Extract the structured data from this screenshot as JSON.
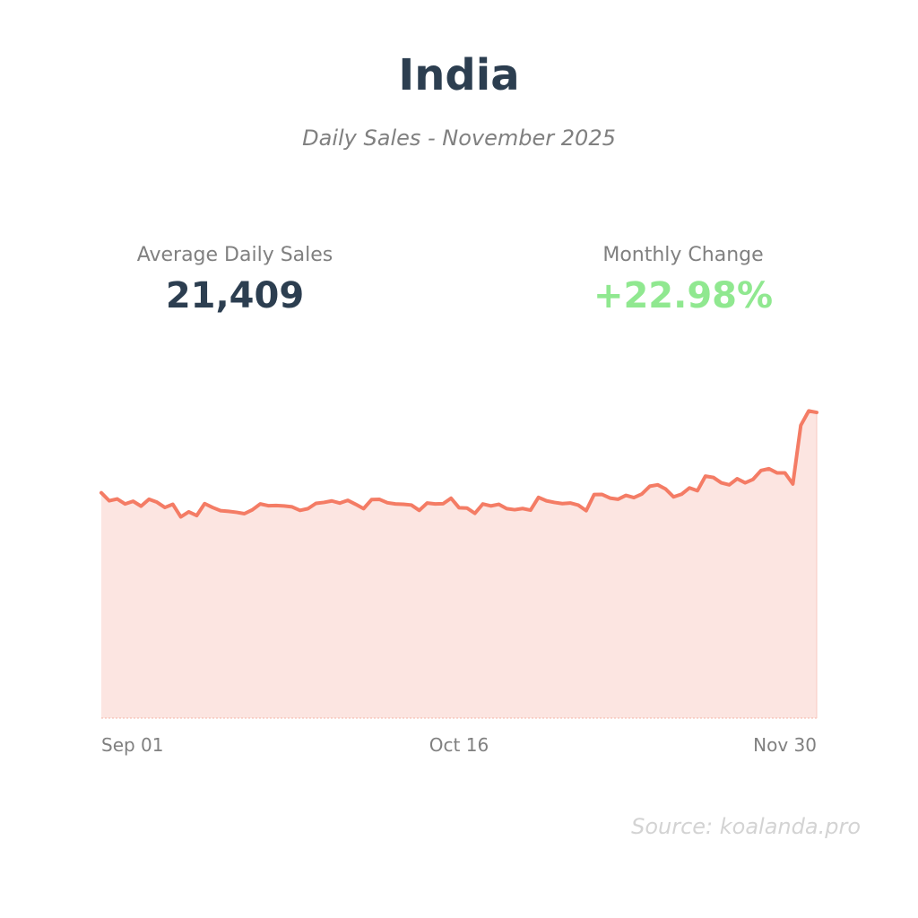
{
  "header": {
    "title": "India",
    "subtitle": "Daily Sales - November 2025"
  },
  "stats": {
    "avg_label": "Average Daily Sales",
    "avg_value": "21,409",
    "change_label": "Monthly Change",
    "change_value": "+22.98%"
  },
  "colors": {
    "title": "#2c3e50",
    "line": "#f47c65",
    "fill": "#fce5e1",
    "positive": "#90e890",
    "muted": "#808080",
    "source": "#d3d3d3"
  },
  "footer": {
    "source": "Source: koalanda.pro"
  },
  "chart_data": {
    "type": "area",
    "x_tick_labels": [
      "Sep 01",
      "Oct 16",
      "Nov 30"
    ],
    "grid": false,
    "legend": "none",
    "series": [
      {
        "values": [
          19200,
          18520,
          18680,
          18250,
          18480,
          18060,
          18650,
          18400,
          17950,
          18220,
          17150,
          17580,
          17260,
          18280,
          17950,
          17680,
          17620,
          17540,
          17420,
          17750,
          18250,
          18100,
          18120,
          18080,
          18000,
          17700,
          17850,
          18300,
          18380,
          18510,
          18320,
          18560,
          18220,
          17850,
          18620,
          18640,
          18350,
          18250,
          18220,
          18160,
          17700,
          18330,
          18250,
          18270,
          18740,
          17930,
          17900,
          17450,
          18250,
          18080,
          18220,
          17850,
          17760,
          17860,
          17720,
          18810,
          18520,
          18380,
          18280,
          18330,
          18150,
          17680,
          19050,
          19060,
          18750,
          18650,
          18980,
          18790,
          19100,
          19760,
          19880,
          19520,
          18850,
          19080,
          19620,
          19380,
          20620,
          20510,
          20050,
          19880,
          20400,
          20050,
          20350,
          21100,
          21250,
          20900,
          20900,
          19950,
          24950,
          26180,
          26050
        ]
      }
    ]
  }
}
